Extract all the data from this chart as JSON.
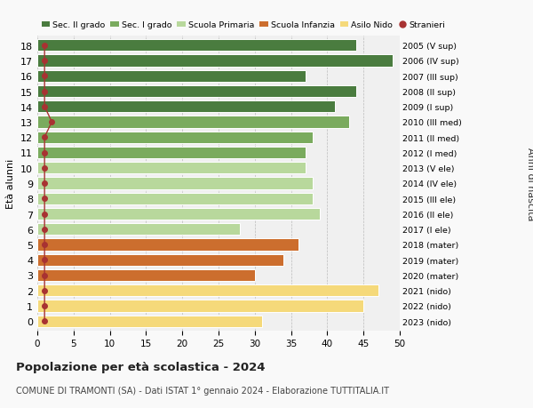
{
  "ages": [
    18,
    17,
    16,
    15,
    14,
    13,
    12,
    11,
    10,
    9,
    8,
    7,
    6,
    5,
    4,
    3,
    2,
    1,
    0
  ],
  "values": [
    44,
    49,
    37,
    44,
    41,
    43,
    38,
    37,
    37,
    38,
    38,
    39,
    28,
    36,
    34,
    30,
    47,
    45,
    31
  ],
  "stranieri": [
    1,
    1,
    1,
    1,
    1,
    2,
    1,
    1,
    1,
    1,
    1,
    1,
    1,
    1,
    1,
    1,
    1,
    1,
    1
  ],
  "right_labels": [
    "2005 (V sup)",
    "2006 (IV sup)",
    "2007 (III sup)",
    "2008 (II sup)",
    "2009 (I sup)",
    "2010 (III med)",
    "2011 (II med)",
    "2012 (I med)",
    "2013 (V ele)",
    "2014 (IV ele)",
    "2015 (III ele)",
    "2016 (II ele)",
    "2017 (I ele)",
    "2018 (mater)",
    "2019 (mater)",
    "2020 (mater)",
    "2021 (nido)",
    "2022 (nido)",
    "2023 (nido)"
  ],
  "bar_colors": [
    "#4a7c3f",
    "#4a7c3f",
    "#4a7c3f",
    "#4a7c3f",
    "#4a7c3f",
    "#7aab5e",
    "#7aab5e",
    "#7aab5e",
    "#b8d89c",
    "#b8d89c",
    "#b8d89c",
    "#b8d89c",
    "#b8d89c",
    "#cc6e2e",
    "#cc6e2e",
    "#cc6e2e",
    "#f5d97a",
    "#f5d97a",
    "#f5d97a"
  ],
  "legend_labels": [
    "Sec. II grado",
    "Sec. I grado",
    "Scuola Primaria",
    "Scuola Infanzia",
    "Asilo Nido",
    "Stranieri"
  ],
  "legend_colors": [
    "#4a7c3f",
    "#7aab5e",
    "#b8d89c",
    "#cc6e2e",
    "#f5d97a",
    "#c0392b"
  ],
  "ylabel": "Età alunni",
  "ylabel_right": "Anni di nascita",
  "title": "Popolazione per età scolastica - 2024",
  "subtitle": "COMUNE DI TRAMONTI (SA) - Dati ISTAT 1° gennaio 2024 - Elaborazione TUTTITALIA.IT",
  "xlim": [
    0,
    50
  ],
  "xticks": [
    0,
    5,
    10,
    15,
    20,
    25,
    30,
    35,
    40,
    45,
    50
  ],
  "bg_color": "#f9f9f9",
  "plot_bg_color": "#f0f0f0",
  "stranieri_color": "#a83232",
  "bar_height": 0.78
}
